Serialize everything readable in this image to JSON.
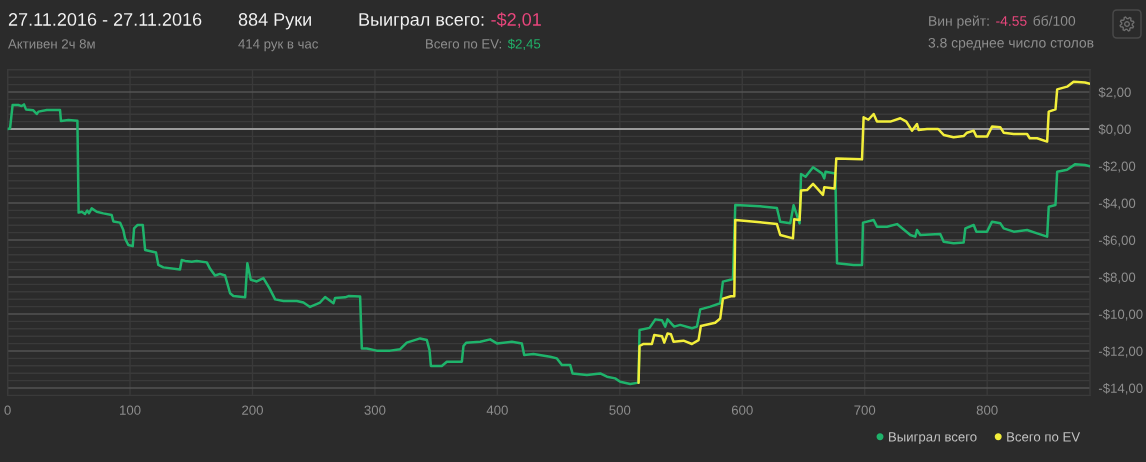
{
  "chart_data": {
    "type": "line",
    "title": "27.11.2016 - 27.11.2016",
    "subtitle": "Активен 2ч 8м",
    "annotations": [
      "884 Руки",
      "414 рук в час",
      "Выиграл всего:",
      "-$2,01",
      "Всего по EV:",
      "$2,45",
      "Вин рейт:",
      "-4.55",
      "бб/100",
      "3.8 среднее число столов"
    ],
    "series": [
      {
        "name": "Выиграл всего",
        "color": "#1fb36b",
        "x": [
          0,
          2,
          4.1,
          8.8,
          11.5,
          13.4,
          15,
          21,
          23.8,
          25.2,
          32,
          42.8,
          43.6,
          49.6,
          57,
          58,
          60.6,
          63.2,
          65,
          66.5,
          68.7,
          72.8,
          78.2,
          85,
          86.4,
          91.8,
          94.5,
          95.9,
          98.6,
          102.2,
          103.3,
          106,
          110.4,
          112.3,
          115,
          121.2,
          123.1,
          127.2,
          140.8,
          142.2,
          145,
          150.4,
          154.5,
          162.7,
          165.4,
          169.4,
          173.5,
          177.6,
          181.7,
          184.4,
          194,
          195.8,
          198.6,
          203.5,
          208.9,
          213.8,
          218.5,
          225.3,
          236.2,
          241.6,
          247,
          255.2,
          259.3,
          266.1,
          267.5,
          275.7,
          278.4,
          287.9,
          289.3,
          293.4,
          301.5,
          312.4,
          320.6,
          326,
          336.9,
          342.4,
          344.6,
          345.7,
          354.6,
          358.7,
          371,
          372.3,
          374.5,
          386,
          394.1,
          399.6,
          411.8,
          420,
          421.9,
          429.5,
          443.1,
          448.6,
          452.7,
          459.5,
          461.4,
          473.1,
          484,
          489.5,
          496.2,
          500.3,
          508.5,
          515.3,
          516.1,
          524.3,
          529,
          534.4,
          537.1,
          539,
          544.4,
          549.3,
          558.9,
          563,
          565.7,
          573.9,
          582,
          584.2,
          590.2,
          592.4,
          594.3,
          614.7,
          628.3,
          631,
          639.2,
          641.9,
          646.8,
          648,
          651.7,
          657.8,
          665.1,
          667,
          668,
          676,
          677.4,
          690.9,
          697.8,
          698.6,
          707.3,
          710,
          718.2,
          726.4,
          737.3,
          741.3,
          742.7,
          745.4,
          761.7,
          764.5,
          772.6,
          780.8,
          782.2,
          789,
          791.2,
          799.9,
          804,
          810.8,
          813.5,
          821.7,
          832.6,
          840.8,
          849,
          850.3,
          855.8,
          857.2,
          865.3,
          872,
          879.9,
          884
        ],
        "values": [
          0,
          0.03,
          1.3,
          1.3,
          1.24,
          1.33,
          1.06,
          1.01,
          0.81,
          0.94,
          1.03,
          1.03,
          0.43,
          0.49,
          0.45,
          -4.52,
          -4.47,
          -4.59,
          -4.41,
          -4.55,
          -4.29,
          -4.47,
          -4.56,
          -4.65,
          -5.0,
          -5.06,
          -5.46,
          -5.91,
          -6.27,
          -6.33,
          -5.37,
          -5.19,
          -5.19,
          -6.54,
          -6.58,
          -6.68,
          -7.35,
          -7.48,
          -7.59,
          -7.08,
          -7.13,
          -7.17,
          -7.13,
          -7.21,
          -7.56,
          -7.92,
          -7.83,
          -7.92,
          -8.88,
          -9.03,
          -9.1,
          -7.26,
          -8.15,
          -8.24,
          -8.06,
          -8.6,
          -9.21,
          -9.3,
          -9.3,
          -9.38,
          -9.62,
          -9.38,
          -9.08,
          -9.42,
          -9.13,
          -9.1,
          -9.03,
          -9.06,
          -11.86,
          -11.87,
          -11.98,
          -11.98,
          -11.9,
          -11.55,
          -11.32,
          -11.41,
          -11.95,
          -12.81,
          -12.81,
          -12.58,
          -12.58,
          -11.73,
          -11.55,
          -11.5,
          -11.37,
          -11.59,
          -11.5,
          -11.59,
          -12.22,
          -12.16,
          -12.31,
          -12.4,
          -12.76,
          -12.76,
          -13.21,
          -13.3,
          -13.21,
          -13.39,
          -13.48,
          -13.66,
          -13.78,
          -13.71,
          -10.86,
          -10.75,
          -10.29,
          -10.34,
          -10.68,
          -10.29,
          -10.68,
          -10.59,
          -10.77,
          -10.68,
          -9.75,
          -9.6,
          -9.42,
          -8.25,
          -8.15,
          -8.11,
          -4.11,
          -4.18,
          -4.27,
          -5.01,
          -5.1,
          -4.12,
          -5.1,
          -2.43,
          -2.58,
          -2.07,
          -2.4,
          -2.67,
          -2.31,
          -2.4,
          -7.26,
          -7.35,
          -7.35,
          -5.06,
          -4.92,
          -5.28,
          -5.28,
          -5.14,
          -5.73,
          -5.82,
          -5.46,
          -5.73,
          -5.68,
          -6.09,
          -6.18,
          -6.14,
          -5.37,
          -5.19,
          -5.55,
          -5.55,
          -5.01,
          -5.1,
          -5.37,
          -5.55,
          -5.46,
          -5.64,
          -5.82,
          -4.2,
          -4.11,
          -2.31,
          -2.2,
          -1.9,
          -1.95,
          -2.01
        ]
      },
      {
        "name": "Всего по EV",
        "color": "#f2ee3b",
        "x": [
          515.3,
          516.1,
          519.4,
          526.2,
          528.1,
          534.4,
          536.3,
          539,
          541.7,
          543.9,
          552,
          558.9,
          564.3,
          566.2,
          577.9,
          582,
          584.2,
          590.7,
          593.5,
          594.3,
          614.7,
          628.3,
          631,
          641.4,
          642.4,
          646.8,
          648,
          652.9,
          657.8,
          661,
          665.9,
          667,
          675.4,
          676.8,
          697.8,
          699.1,
          703,
          707.3,
          710,
          720.9,
          729.1,
          734,
          738.6,
          742.7,
          744,
          750.9,
          760,
          764.5,
          772.6,
          780.8,
          783.5,
          789,
          791.2,
          799.9,
          804,
          810.8,
          813.5,
          821.7,
          832.6,
          834.8,
          840.8,
          849,
          850.3,
          855.8,
          857.2,
          865.3,
          870.6,
          879.9,
          884
        ],
        "values": [
          -13.71,
          -11.73,
          -11.62,
          -11.62,
          -11.14,
          -11.2,
          -11.55,
          -11.05,
          -11.09,
          -11.5,
          -11.44,
          -11.62,
          -11.41,
          -10.65,
          -10.47,
          -10.24,
          -9.17,
          -9.04,
          -9.04,
          -4.92,
          -5.04,
          -5.14,
          -5.73,
          -5.91,
          -4.88,
          -4.92,
          -3.33,
          -3.3,
          -2.97,
          -3.2,
          -3.56,
          -3.15,
          -3.21,
          -1.59,
          -1.64,
          0.63,
          0.5,
          0.81,
          0.4,
          0.4,
          0.58,
          0.4,
          -0.09,
          0.27,
          -0.05,
          0.0,
          0.0,
          -0.32,
          -0.45,
          -0.38,
          -0.2,
          -0.09,
          -0.41,
          -0.41,
          0.13,
          0.09,
          -0.2,
          -0.27,
          -0.27,
          -0.5,
          -0.5,
          -0.68,
          0.94,
          1.06,
          2.14,
          2.29,
          2.56,
          2.51,
          2.45
        ]
      }
    ],
    "xlim": [
      0,
      884
    ],
    "xticks": [
      0,
      100,
      200,
      300,
      400,
      500,
      600,
      700,
      800
    ],
    "ylim": [
      -14.4,
      3.2
    ],
    "yticks": [
      {
        "value": -14,
        "label": "-$14,00"
      },
      {
        "value": -13.6,
        "label": null
      },
      {
        "value": -13.2,
        "label": null
      },
      {
        "value": -12.8,
        "label": null
      },
      {
        "value": -12.4,
        "label": null
      },
      {
        "value": -12,
        "label": "-$12,00"
      },
      {
        "value": -11.6,
        "label": null
      },
      {
        "value": -11.2,
        "label": null
      },
      {
        "value": -10.8,
        "label": null
      },
      {
        "value": -10.4,
        "label": null
      },
      {
        "value": -10,
        "label": "-$10,00"
      },
      {
        "value": -9.6,
        "label": null
      },
      {
        "value": -9.2,
        "label": null
      },
      {
        "value": -8.8,
        "label": null
      },
      {
        "value": -8.4,
        "label": null
      },
      {
        "value": -8,
        "label": "-$8,00"
      },
      {
        "value": -7.6,
        "label": null
      },
      {
        "value": -7.2,
        "label": null
      },
      {
        "value": -6.8,
        "label": null
      },
      {
        "value": -6.4,
        "label": null
      },
      {
        "value": -6,
        "label": "-$6,00"
      },
      {
        "value": -5.6,
        "label": null
      },
      {
        "value": -5.2,
        "label": null
      },
      {
        "value": -4.8,
        "label": null
      },
      {
        "value": -4.4,
        "label": null
      },
      {
        "value": -4,
        "label": "-$4,00"
      },
      {
        "value": -3.6,
        "label": null
      },
      {
        "value": -3.2,
        "label": null
      },
      {
        "value": -2.8,
        "label": null
      },
      {
        "value": -2.4,
        "label": null
      },
      {
        "value": -2,
        "label": "-$2,00"
      },
      {
        "value": -1.6,
        "label": null
      },
      {
        "value": -1.2,
        "label": null
      },
      {
        "value": -0.8,
        "label": null
      },
      {
        "value": -0.4,
        "label": null
      },
      {
        "value": 0,
        "label": "$0,00"
      },
      {
        "value": 0.4,
        "label": null
      },
      {
        "value": 0.8,
        "label": null
      },
      {
        "value": 1.2,
        "label": null
      },
      {
        "value": 1.6,
        "label": null
      },
      {
        "value": 2,
        "label": "$2,00"
      },
      {
        "value": 2.4,
        "label": null
      },
      {
        "value": 2.8,
        "label": null
      }
    ],
    "ref_lines": [
      {
        "axis": "y",
        "value": 0,
        "color": "#9a9a9a"
      }
    ],
    "grid": true,
    "legend": "bottom right",
    "line_style": "solid"
  }
}
